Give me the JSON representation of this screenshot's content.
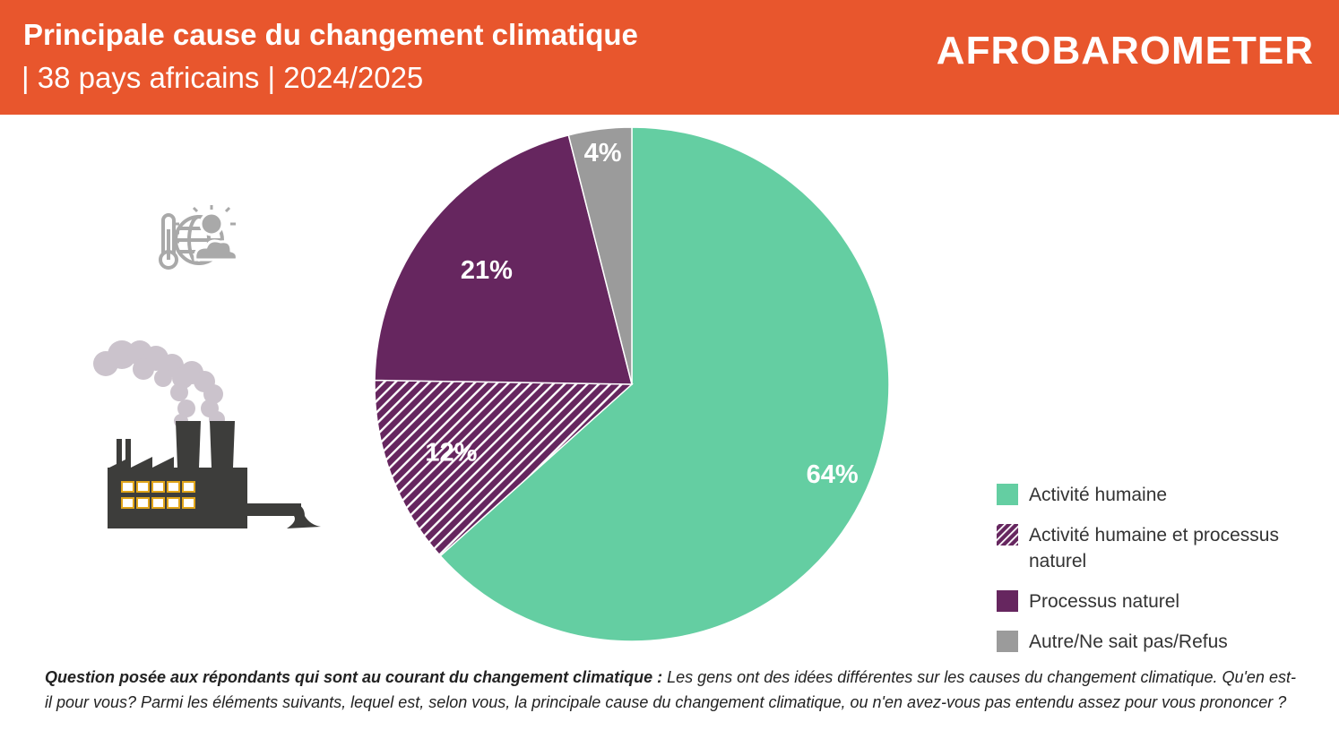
{
  "header": {
    "title": "Principale cause du changement climatique",
    "subtitle": "| 38 pays africains | 2024/2025",
    "logo": "AFROBAROMETER"
  },
  "colors": {
    "header_bg": "#e8562d",
    "human": "#64cea2",
    "mixed": "#66265f",
    "natural": "#66265f",
    "other": "#9b9b9b"
  },
  "chart_data": {
    "type": "pie",
    "title": "Principale cause du changement climatique",
    "slices": [
      {
        "label": "Activité humaine",
        "value": 64,
        "display": "64%",
        "color": "#64cea2",
        "pattern": false
      },
      {
        "label": "Activité humaine et processus naturel",
        "value": 12,
        "display": "12%",
        "color": "#66265f",
        "pattern": true
      },
      {
        "label": "Processus naturel",
        "value": 21,
        "display": "21%",
        "color": "#66265f",
        "pattern": false
      },
      {
        "label": "Autre/Ne sait pas/Refus",
        "value": 4,
        "display": "4%",
        "color": "#9b9b9b",
        "pattern": false
      }
    ],
    "start": "12 o'clock",
    "direction": "clockwise",
    "legend_position": "right-bottom"
  },
  "footnote": {
    "question_lead": "Question posée aux répondants qui sont au courant du changement climatique :",
    "question_text": "Les gens ont des idées différentes sur les causes du changement climatique. Qu'en est-il pour vous? Parmi les éléments suivants, lequel est, selon vous, la principale cause du changement climatique, ou n'en avez-vous pas entendu assez pour vous prononcer ?"
  },
  "icons": {
    "climate": "climate-thermometer-globe-icon",
    "factory": "factory-pollution-icon"
  }
}
